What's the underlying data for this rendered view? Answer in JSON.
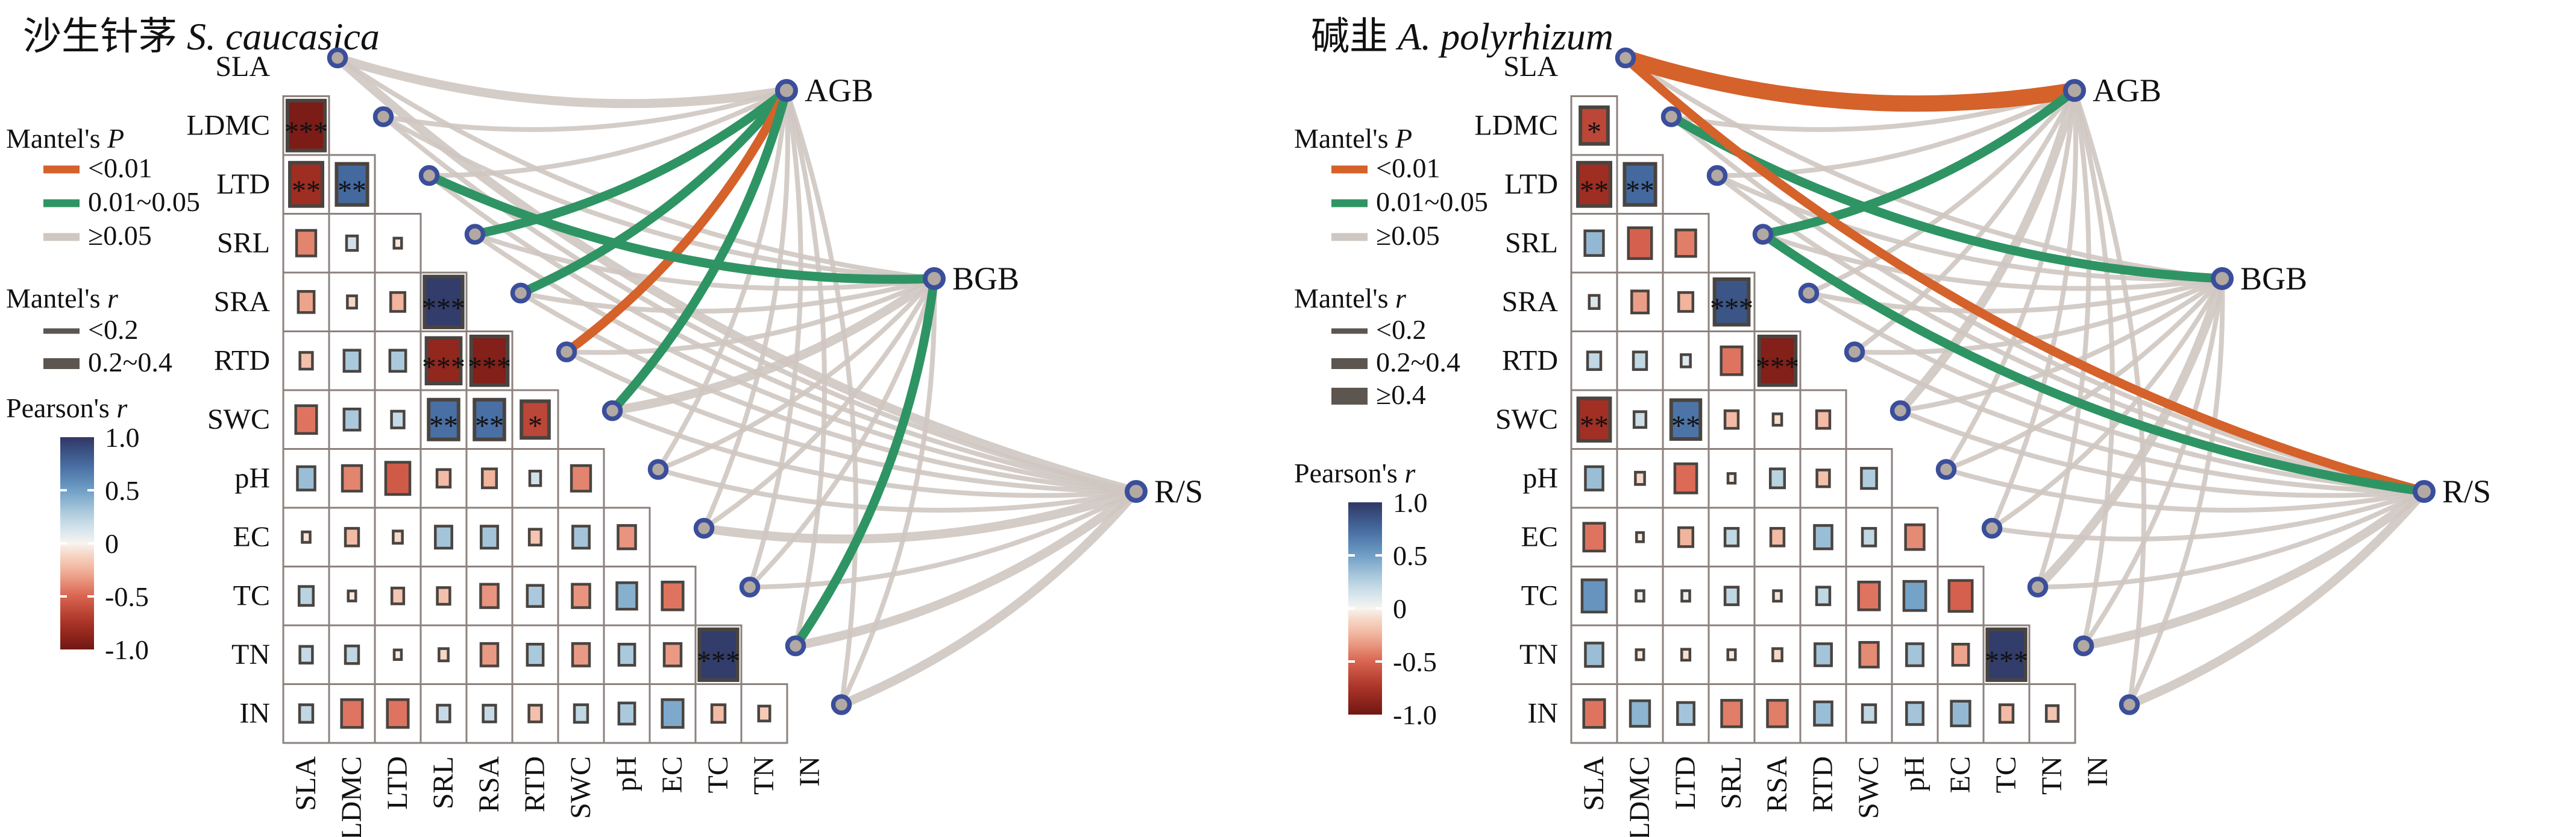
{
  "chart_data": {
    "type": "heatmap+network (Mantel test correlation figure)",
    "pearson_scale": {
      "min": -1,
      "max": 1,
      "tick_labels": [
        "1.0",
        "0.5",
        "0",
        "-0.5",
        "-1.0"
      ]
    },
    "colors": {
      "mantel_p_lt001": "#d4622a",
      "mantel_p_001_005": "#2f9464",
      "mantel_p_ge005": "#cfc7c1",
      "mantel_r_swatch": "#5d5650",
      "node_fill": "#b2a9a2",
      "node_ring": "#3b4e9b",
      "cell_border": "#8b827d",
      "square_border": "#4a4440",
      "star": "#191919",
      "scale_stops": [
        [
          -1,
          "#701713"
        ],
        [
          -0.75,
          "#a93226"
        ],
        [
          -0.5,
          "#d96450"
        ],
        [
          -0.25,
          "#f2b49c"
        ],
        [
          -0.08,
          "#f7ddce"
        ],
        [
          0,
          "#f8f4f0"
        ],
        [
          0.08,
          "#e2ebf0"
        ],
        [
          0.25,
          "#b9d3e2"
        ],
        [
          0.5,
          "#6f9fc6"
        ],
        [
          0.75,
          "#44699f"
        ],
        [
          1,
          "#303764"
        ]
      ]
    },
    "legend_labels": {
      "mantel_p_title": "Mantel's P",
      "mantel_r_title": "Mantel's r",
      "pearson_title": "Pearson's r",
      "mantel_p_items": [
        "<0.01",
        "0.01~0.05",
        "≥0.05"
      ]
    },
    "panels": [
      {
        "title_cn": "沙生针茅",
        "title_species": "S. caucasica",
        "row_labels": [
          "SLA",
          "LDMC",
          "LTD",
          "SRL",
          "SRA",
          "RTD",
          "SWC",
          "pH",
          "EC",
          "TC",
          "TN",
          "IN"
        ],
        "bottom_labels": [
          "SLA",
          "LDMC",
          "LTD",
          "SRL",
          "RSA",
          "RTD",
          "SWC",
          "pH",
          "EC",
          "TC",
          "TN",
          "IN"
        ],
        "hubs": [
          "AGB",
          "BGB",
          "R/S"
        ],
        "mantel_r_items": [
          "<0.2",
          "0.2~0.4"
        ],
        "pearson_rows": [
          [
            [
              -0.95,
              "***"
            ]
          ],
          [
            [
              -0.8,
              "**"
            ],
            [
              0.75,
              "**"
            ]
          ],
          [
            [
              -0.4,
              ""
            ],
            [
              0.15,
              ""
            ],
            [
              -0.05,
              ""
            ]
          ],
          [
            [
              -0.3,
              ""
            ],
            [
              -0.1,
              ""
            ],
            [
              -0.25,
              ""
            ],
            [
              0.97,
              "***"
            ]
          ],
          [
            [
              -0.2,
              ""
            ],
            [
              0.3,
              ""
            ],
            [
              0.3,
              ""
            ],
            [
              -0.85,
              "***"
            ],
            [
              -0.92,
              "***"
            ]
          ],
          [
            [
              -0.45,
              ""
            ],
            [
              0.3,
              ""
            ],
            [
              0.2,
              ""
            ],
            [
              0.72,
              "**"
            ],
            [
              0.72,
              "**"
            ],
            [
              -0.65,
              "*"
            ]
          ],
          [
            [
              0.35,
              ""
            ],
            [
              -0.4,
              ""
            ],
            [
              -0.55,
              ""
            ],
            [
              -0.22,
              ""
            ],
            [
              -0.25,
              ""
            ],
            [
              0.15,
              ""
            ],
            [
              -0.4,
              ""
            ]
          ],
          [
            [
              -0.06,
              ""
            ],
            [
              -0.22,
              ""
            ],
            [
              -0.1,
              ""
            ],
            [
              0.32,
              ""
            ],
            [
              0.32,
              ""
            ],
            [
              -0.18,
              ""
            ],
            [
              0.32,
              ""
            ],
            [
              -0.35,
              ""
            ]
          ],
          [
            [
              0.25,
              ""
            ],
            [
              -0.05,
              ""
            ],
            [
              -0.18,
              ""
            ],
            [
              -0.2,
              ""
            ],
            [
              -0.35,
              ""
            ],
            [
              0.3,
              ""
            ],
            [
              -0.35,
              ""
            ],
            [
              0.42,
              ""
            ],
            [
              -0.45,
              ""
            ]
          ],
          [
            [
              0.2,
              ""
            ],
            [
              0.22,
              ""
            ],
            [
              -0.04,
              ""
            ],
            [
              -0.1,
              ""
            ],
            [
              -0.33,
              ""
            ],
            [
              0.3,
              ""
            ],
            [
              -0.33,
              ""
            ],
            [
              0.3,
              ""
            ],
            [
              -0.33,
              ""
            ],
            [
              0.97,
              "***"
            ]
          ],
          [
            [
              0.22,
              ""
            ],
            [
              -0.45,
              ""
            ],
            [
              -0.45,
              ""
            ],
            [
              0.2,
              ""
            ],
            [
              0.2,
              ""
            ],
            [
              -0.2,
              ""
            ],
            [
              0.22,
              ""
            ],
            [
              0.3,
              ""
            ],
            [
              0.45,
              ""
            ],
            [
              -0.22,
              ""
            ],
            [
              -0.16,
              ""
            ]
          ]
        ],
        "mantel_links": [
          [
            0,
            0,
            3,
            2
          ],
          [
            1,
            0,
            3,
            1
          ],
          [
            2,
            0,
            3,
            1
          ],
          [
            3,
            0,
            2,
            2
          ],
          [
            4,
            0,
            2,
            2
          ],
          [
            5,
            0,
            1,
            2
          ],
          [
            6,
            0,
            2,
            2
          ],
          [
            7,
            0,
            3,
            1
          ],
          [
            8,
            0,
            3,
            1
          ],
          [
            9,
            0,
            3,
            1
          ],
          [
            10,
            0,
            3,
            1
          ],
          [
            11,
            0,
            3,
            1
          ],
          [
            0,
            1,
            3,
            1
          ],
          [
            1,
            1,
            3,
            1
          ],
          [
            2,
            1,
            2,
            2
          ],
          [
            3,
            1,
            3,
            1
          ],
          [
            4,
            1,
            3,
            1
          ],
          [
            5,
            1,
            3,
            1
          ],
          [
            6,
            1,
            3,
            2
          ],
          [
            7,
            1,
            3,
            1
          ],
          [
            8,
            1,
            3,
            1
          ],
          [
            9,
            1,
            3,
            1
          ],
          [
            10,
            1,
            2,
            2
          ],
          [
            11,
            1,
            3,
            1
          ],
          [
            0,
            2,
            3,
            2
          ],
          [
            1,
            2,
            3,
            1
          ],
          [
            2,
            2,
            3,
            1
          ],
          [
            3,
            2,
            3,
            1
          ],
          [
            4,
            2,
            3,
            1
          ],
          [
            5,
            2,
            3,
            1
          ],
          [
            6,
            2,
            3,
            1
          ],
          [
            7,
            2,
            3,
            1
          ],
          [
            8,
            2,
            3,
            2
          ],
          [
            9,
            2,
            3,
            1
          ],
          [
            10,
            2,
            3,
            2
          ],
          [
            11,
            2,
            3,
            2
          ]
        ]
      },
      {
        "title_cn": "碱韭",
        "title_species": "A. polyrhizum",
        "row_labels": [
          "SLA",
          "LDMC",
          "LTD",
          "SRL",
          "SRA",
          "RTD",
          "SWC",
          "pH",
          "EC",
          "TC",
          "TN",
          "IN"
        ],
        "bottom_labels": [
          "SLA",
          "LDMC",
          "LTD",
          "SRL",
          "RSA",
          "RTD",
          "SWC",
          "pH",
          "EC",
          "TC",
          "TN",
          "IN"
        ],
        "hubs": [
          "AGB",
          "BGB",
          "R/S"
        ],
        "mantel_r_items": [
          "<0.2",
          "0.2~0.4",
          "≥0.4"
        ],
        "pearson_rows": [
          [
            [
              -0.65,
              "*"
            ]
          ],
          [
            [
              -0.8,
              "**"
            ],
            [
              0.75,
              "**"
            ]
          ],
          [
            [
              0.38,
              ""
            ],
            [
              -0.52,
              ""
            ],
            [
              -0.42,
              ""
            ]
          ],
          [
            [
              0.12,
              ""
            ],
            [
              -0.32,
              ""
            ],
            [
              -0.25,
              ""
            ],
            [
              0.85,
              "***"
            ]
          ],
          [
            [
              0.22,
              ""
            ],
            [
              0.22,
              ""
            ],
            [
              0.1,
              ""
            ],
            [
              -0.45,
              ""
            ],
            [
              -0.92,
              "***"
            ]
          ],
          [
            [
              -0.78,
              "**"
            ],
            [
              0.18,
              ""
            ],
            [
              0.7,
              "**"
            ],
            [
              -0.22,
              ""
            ],
            [
              -0.08,
              ""
            ],
            [
              -0.22,
              ""
            ]
          ],
          [
            [
              0.35,
              ""
            ],
            [
              -0.1,
              ""
            ],
            [
              -0.48,
              ""
            ],
            [
              -0.04,
              ""
            ],
            [
              0.25,
              ""
            ],
            [
              -0.2,
              ""
            ],
            [
              0.28,
              ""
            ]
          ],
          [
            [
              -0.45,
              ""
            ],
            [
              -0.03,
              ""
            ],
            [
              -0.25,
              ""
            ],
            [
              0.22,
              ""
            ],
            [
              -0.22,
              ""
            ],
            [
              0.35,
              ""
            ],
            [
              0.22,
              ""
            ],
            [
              -0.38,
              ""
            ]
          ],
          [
            [
              0.55,
              ""
            ],
            [
              0.06,
              ""
            ],
            [
              0.06,
              ""
            ],
            [
              0.22,
              ""
            ],
            [
              -0.06,
              ""
            ],
            [
              0.22,
              ""
            ],
            [
              -0.45,
              ""
            ],
            [
              0.48,
              ""
            ],
            [
              -0.52,
              ""
            ]
          ],
          [
            [
              0.35,
              ""
            ],
            [
              -0.05,
              ""
            ],
            [
              -0.07,
              ""
            ],
            [
              -0.05,
              ""
            ],
            [
              -0.1,
              ""
            ],
            [
              0.32,
              ""
            ],
            [
              -0.38,
              ""
            ],
            [
              0.32,
              ""
            ],
            [
              -0.3,
              ""
            ],
            [
              0.97,
              "***"
            ]
          ],
          [
            [
              -0.45,
              ""
            ],
            [
              0.4,
              ""
            ],
            [
              0.32,
              ""
            ],
            [
              -0.42,
              ""
            ],
            [
              -0.42,
              ""
            ],
            [
              0.35,
              ""
            ],
            [
              0.22,
              ""
            ],
            [
              0.32,
              ""
            ],
            [
              0.38,
              ""
            ],
            [
              -0.22,
              ""
            ],
            [
              -0.18,
              ""
            ]
          ]
        ],
        "mantel_links": [
          [
            0,
            0,
            1,
            3
          ],
          [
            1,
            0,
            3,
            1
          ],
          [
            2,
            0,
            3,
            1
          ],
          [
            3,
            0,
            2,
            2
          ],
          [
            4,
            0,
            3,
            1
          ],
          [
            5,
            0,
            3,
            1
          ],
          [
            6,
            0,
            3,
            2
          ],
          [
            7,
            0,
            3,
            1
          ],
          [
            8,
            0,
            3,
            1
          ],
          [
            9,
            0,
            3,
            1
          ],
          [
            10,
            0,
            3,
            1
          ],
          [
            11,
            0,
            3,
            1
          ],
          [
            0,
            1,
            3,
            1
          ],
          [
            1,
            1,
            2,
            2
          ],
          [
            2,
            1,
            3,
            1
          ],
          [
            3,
            1,
            3,
            1
          ],
          [
            4,
            1,
            3,
            1
          ],
          [
            5,
            1,
            3,
            1
          ],
          [
            6,
            1,
            3,
            1
          ],
          [
            7,
            1,
            3,
            1
          ],
          [
            8,
            1,
            3,
            1
          ],
          [
            9,
            1,
            3,
            2
          ],
          [
            10,
            1,
            3,
            1
          ],
          [
            11,
            1,
            3,
            1
          ],
          [
            0,
            2,
            1,
            2
          ],
          [
            1,
            2,
            3,
            1
          ],
          [
            2,
            2,
            3,
            1
          ],
          [
            3,
            2,
            2,
            2
          ],
          [
            4,
            2,
            3,
            1
          ],
          [
            5,
            2,
            3,
            1
          ],
          [
            6,
            2,
            3,
            1
          ],
          [
            7,
            2,
            3,
            1
          ],
          [
            8,
            2,
            3,
            1
          ],
          [
            9,
            2,
            3,
            1
          ],
          [
            10,
            2,
            3,
            2
          ],
          [
            11,
            2,
            3,
            2
          ]
        ]
      }
    ]
  }
}
